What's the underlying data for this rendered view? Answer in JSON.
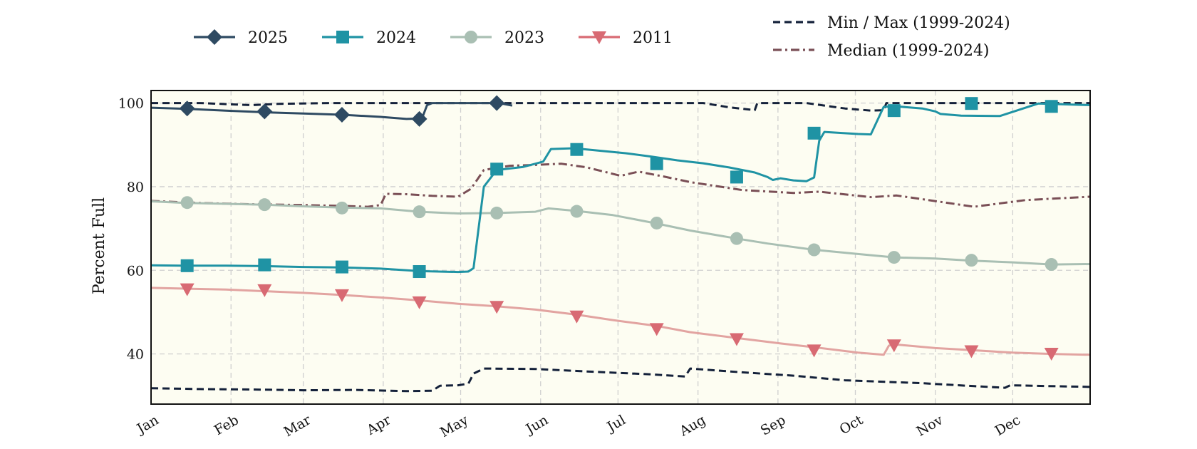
{
  "chart_data": {
    "type": "line",
    "ylabel": "Percent Full",
    "ylim": [
      28,
      103
    ],
    "y_ticks": [
      40,
      60,
      80,
      100
    ],
    "x_ticks": [
      "Jan",
      "Feb",
      "Mar",
      "Apr",
      "May",
      "Jun",
      "Jul",
      "Aug",
      "Sep",
      "Oct",
      "Nov",
      "Dec"
    ],
    "grid": true,
    "background": "#fdfdf2",
    "legend": {
      "placement": "top",
      "items": [
        {
          "label": "2025",
          "color": "#2e4a62",
          "marker": "diamond"
        },
        {
          "label": "2024",
          "color": "#1f93a4",
          "marker": "square"
        },
        {
          "label": "2023",
          "color": "#a9bfb3",
          "marker": "circle"
        },
        {
          "label": "2011",
          "color": "#d86a73",
          "marker": "triangle-down"
        },
        {
          "label": "Min / Max (1999-2024)",
          "color": "#14213a",
          "dash": "dashed"
        },
        {
          "label": "Median (1999-2024)",
          "color": "#7a4f56",
          "dash": "dashdot"
        }
      ]
    },
    "series": [
      {
        "name": "2025",
        "color": "#2e4a62",
        "marker": "diamond",
        "x": [
          1,
          15,
          30,
          45,
          60,
          75,
          90,
          100,
          106,
          108,
          110,
          136,
          141
        ],
        "values": [
          98.9,
          98.6,
          98.2,
          97.8,
          97.5,
          97.2,
          96.7,
          96.2,
          96.3,
          99.5,
          100,
          100,
          99.4
        ],
        "markers": [
          [
            15,
            98.7
          ],
          [
            45,
            98.0
          ],
          [
            75,
            97.2
          ],
          [
            105,
            96.2
          ],
          [
            135,
            100
          ]
        ]
      },
      {
        "name": "2024",
        "color": "#1f93a4",
        "marker": "square",
        "x": [
          1,
          15,
          30,
          45,
          60,
          75,
          90,
          105,
          120,
          124,
          126,
          130,
          135,
          145,
          150,
          153,
          156,
          165,
          175,
          185,
          195,
          205,
          215,
          225,
          235,
          240,
          242,
          245,
          250,
          255,
          258,
          260,
          262,
          275,
          280,
          285,
          290,
          300,
          305,
          307,
          315,
          330,
          345,
          365
        ],
        "values": [
          61.2,
          61.1,
          61.1,
          61.0,
          60.8,
          60.7,
          60.4,
          59.8,
          59.6,
          59.7,
          60.5,
          80,
          84.0,
          84.7,
          85.5,
          86.0,
          89.0,
          89.2,
          88.6,
          88.0,
          87.2,
          86.3,
          85.6,
          84.6,
          83.4,
          82.3,
          81.6,
          82.0,
          81.5,
          81.3,
          82.2,
          91.0,
          93.1,
          92.6,
          92.5,
          99.1,
          99.2,
          98.7,
          98.0,
          97.4,
          97.0,
          96.9,
          99.9,
          99.5
        ],
        "markers": [
          [
            15,
            61.1
          ],
          [
            45,
            61.3
          ],
          [
            75,
            60.8
          ],
          [
            105,
            59.7
          ],
          [
            135,
            84.2
          ],
          [
            166,
            88.9
          ],
          [
            197,
            85.5
          ],
          [
            228,
            82.3
          ],
          [
            258,
            92.8
          ],
          [
            289,
            98.2
          ],
          [
            319,
            99.9
          ],
          [
            350,
            99.2
          ]
        ]
      },
      {
        "name": "2023",
        "color": "#a9bfb3",
        "marker": "circle",
        "x": [
          1,
          15,
          30,
          45,
          60,
          75,
          90,
          105,
          120,
          135,
          150,
          155,
          166,
          180,
          197,
          210,
          228,
          240,
          258,
          275,
          289,
          305,
          319,
          335,
          350,
          365
        ],
        "values": [
          76.5,
          76.1,
          75.9,
          75.7,
          75.3,
          75.0,
          74.8,
          74.0,
          73.6,
          73.7,
          74.0,
          74.8,
          74.2,
          73.2,
          71.2,
          69.5,
          67.6,
          66.4,
          64.9,
          63.9,
          63.1,
          62.8,
          62.3,
          61.9,
          61.4,
          61.5
        ],
        "markers": [
          [
            15,
            76.2
          ],
          [
            45,
            75.7
          ],
          [
            75,
            74.9
          ],
          [
            105,
            74.0
          ],
          [
            135,
            73.7
          ],
          [
            166,
            74.1
          ],
          [
            197,
            71.3
          ],
          [
            228,
            67.6
          ],
          [
            258,
            64.9
          ],
          [
            289,
            63.1
          ],
          [
            319,
            62.4
          ],
          [
            350,
            61.4
          ]
        ]
      },
      {
        "name": "2011",
        "color": "#d86a73",
        "line_color": "#e2a4a1",
        "marker": "triangle-down",
        "x": [
          1,
          15,
          30,
          45,
          60,
          75,
          90,
          105,
          120,
          135,
          150,
          166,
          180,
          197,
          210,
          228,
          245,
          258,
          275,
          285,
          287,
          289,
          305,
          319,
          335,
          350,
          365
        ],
        "values": [
          55.8,
          55.6,
          55.4,
          55.0,
          54.6,
          54.1,
          53.5,
          52.8,
          52.0,
          51.4,
          50.6,
          49.4,
          48.1,
          46.7,
          45.2,
          43.8,
          42.5,
          41.6,
          40.3,
          39.8,
          42.0,
          42.3,
          41.4,
          40.9,
          40.3,
          40.0,
          39.8
        ],
        "markers": [
          [
            15,
            55.5
          ],
          [
            45,
            55.3
          ],
          [
            75,
            54.1
          ],
          [
            105,
            52.4
          ],
          [
            135,
            51.3
          ],
          [
            166,
            49.0
          ],
          [
            197,
            46.0
          ],
          [
            228,
            43.6
          ],
          [
            258,
            40.9
          ],
          [
            289,
            42.1
          ],
          [
            319,
            40.7
          ],
          [
            350,
            40.1
          ]
        ]
      },
      {
        "name": "Max",
        "color": "#14213a",
        "dash": "dashed",
        "x": [
          1,
          20,
          40,
          50,
          70,
          100,
          120,
          150,
          180,
          200,
          215,
          225,
          235,
          236,
          255,
          270,
          280,
          285,
          286,
          300,
          330,
          365
        ],
        "values": [
          100,
          100,
          99.5,
          99.8,
          100,
          100,
          100,
          100,
          100,
          100,
          100,
          99,
          98.3,
          100,
          100,
          98.7,
          98.2,
          98.3,
          100,
          100,
          100,
          100
        ]
      },
      {
        "name": "Min",
        "color": "#14213a",
        "dash": "dashed",
        "x": [
          1,
          20,
          40,
          60,
          80,
          100,
          110,
          113,
          120,
          124,
          126,
          130,
          150,
          170,
          195,
          208,
          210,
          230,
          250,
          270,
          300,
          320,
          332,
          334,
          365
        ],
        "values": [
          31.8,
          31.6,
          31.5,
          31.3,
          31.4,
          31.1,
          31.2,
          32.4,
          32.5,
          32.9,
          35.3,
          36.5,
          36.4,
          35.8,
          35.1,
          34.6,
          36.5,
          35.6,
          34.8,
          33.7,
          33.0,
          32.3,
          31.9,
          32.5,
          32.1
        ]
      },
      {
        "name": "Median",
        "color": "#7a4f56",
        "dash": "dashdot",
        "x": [
          1,
          20,
          40,
          60,
          75,
          85,
          90,
          92,
          100,
          110,
          120,
          125,
          130,
          140,
          150,
          160,
          170,
          183,
          190,
          200,
          210,
          230,
          250,
          260,
          280,
          290,
          300,
          320,
          340,
          365
        ],
        "values": [
          76.6,
          76.1,
          75.8,
          75.6,
          75.4,
          75.2,
          75.6,
          78.3,
          78.2,
          77.8,
          77.6,
          79.5,
          84.0,
          85.0,
          85.2,
          85.5,
          84.6,
          82.6,
          83.6,
          82.4,
          81.1,
          79.2,
          78.5,
          78.8,
          77.5,
          77.9,
          77.0,
          75.2,
          76.8,
          77.6
        ]
      }
    ]
  }
}
